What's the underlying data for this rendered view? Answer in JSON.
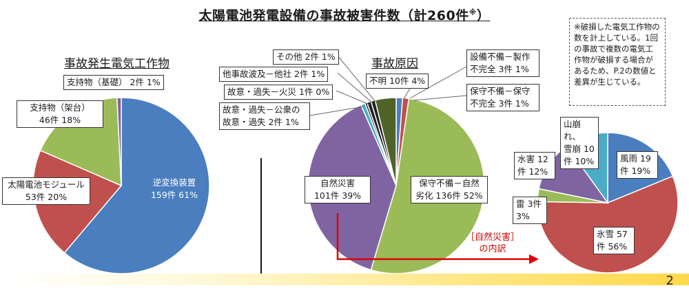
{
  "title": "太陽電池発電設備の事故被害件数（計260件",
  "title_sup": "※",
  "title_end": "）",
  "note": "※破損した電気工作物の数を計上している。1回の事故で複数の電気工作物が破損する場合があるため、P.2の数値と差異が生じている。",
  "breakdown_label": "［自然災害］\nの内訳",
  "page_number": "2",
  "colors": {
    "blue": "#4a7ebf",
    "red": "#c0504d",
    "green": "#9bbb59",
    "purple": "#8064a2",
    "teal": "#4bacc6",
    "darkgreen": "#4f6228",
    "black": "#222222",
    "arrow": "#dd0000"
  },
  "chart_data": [
    {
      "type": "pie",
      "title": "事故発生電気工作物",
      "categories": [
        "逆変換装置",
        "太陽電池モジュール",
        "支持物（架台）",
        "支持物（基礎）"
      ],
      "values": [
        159,
        53,
        46,
        2
      ],
      "labels": [
        "逆変換装置\n159件 61%",
        "太陽電池モジュール\n53件 20%",
        "支持物（架台）\n46件 18%",
        "支持物（基礎） 2件 1%"
      ]
    },
    {
      "type": "pie",
      "title": "事故原因",
      "categories": [
        "設備不備－製作不完全",
        "保守不備－保守不完全",
        "保守不備－自然劣化",
        "自然災害",
        "故意・過失－公衆の故意・過失",
        "故意・過失－火災",
        "他事故波及－他社",
        "その他",
        "不明"
      ],
      "values": [
        3,
        3,
        136,
        101,
        2,
        1,
        2,
        2,
        10
      ],
      "labels": [
        "設備不備－製作\n不完全 3件 1%",
        "保守不備－保守\n不完全 3件 1%",
        "保守不備－自然\n劣化 136件 52%",
        "自然災害\n101件 39%",
        "故意・過失－公衆の\n故意・過失 2件 1%",
        "故意・過失－火災 1件 0%",
        "他事故波及－他社 2件 1%",
        "その他 2件 1%",
        "不明 10件 4%"
      ]
    },
    {
      "type": "pie",
      "title": "",
      "categories": [
        "風雨",
        "氷雪",
        "雷",
        "水害",
        "山崩れ、雪崩"
      ],
      "values": [
        19,
        57,
        3,
        12,
        10
      ],
      "labels": [
        "風雨 19\n件 19%",
        "氷雪 57\n件 56%",
        "雷 3件\n3%",
        "水害 12\n件 12%",
        "山崩れ、\n雪崩 10\n件 10%"
      ]
    }
  ]
}
